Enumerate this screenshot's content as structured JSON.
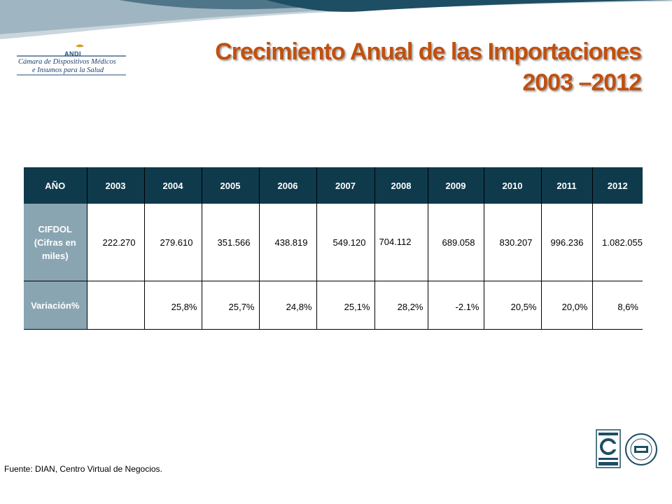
{
  "header": {
    "title_line1": "Crecimiento Anual de las Importaciones",
    "title_line2": "2003 –2012"
  },
  "logo": {
    "name": "ANDI",
    "line1": "Cámara de Dispositivos Médicos",
    "line2": "e Insumos para la Salud"
  },
  "table": {
    "corner": "AÑO",
    "years": [
      "2003",
      "2004",
      "2005",
      "2006",
      "2007",
      "2008",
      "2009",
      "2010",
      "2011",
      "2012"
    ],
    "row1_label": "CIFDOL (Cifras en miles)",
    "row1_values": [
      "222.270",
      "279.610",
      "351.566",
      "438.819",
      "549.120",
      "704.112",
      "689.058",
      "830.207",
      "996.236",
      "1.082.055"
    ],
    "row2_label": "Variación%",
    "row2_values": [
      "",
      "25,8%",
      "25,7%",
      "24,8%",
      "25,1%",
      "28,2%",
      "-2.1%",
      "20,5%",
      "20,0%",
      "8,6%"
    ]
  },
  "footer": {
    "source": "Fuente: DIAN, Centro Virtual de Negocios."
  },
  "colors": {
    "title": "#c0500f",
    "header_bg": "#0e3a4c",
    "row_header_bg": "#8aa5b2",
    "swoosh_dark": "#1d4e63",
    "swoosh_light": "#9fb6c2"
  },
  "icons": [
    "icontec-certification-icon",
    "iqnet-certification-icon"
  ]
}
